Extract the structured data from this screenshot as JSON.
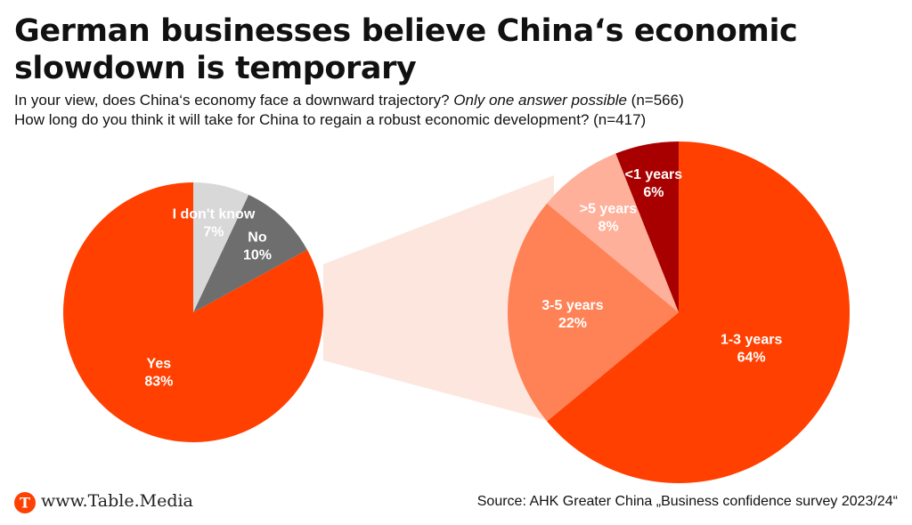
{
  "title": "German businesses believe China‘s economic slowdown is temporary",
  "subtitle_1": {
    "text": "In your view, does China‘s economy face a downward trajectory?",
    "italic": "Only one answer possible",
    "n": "(n=566)"
  },
  "subtitle_2": "How long do you think it will take for China to regain a robust economic development? (n=417)",
  "chart_data": [
    {
      "type": "pie",
      "slices": [
        {
          "label": "Yes",
          "value": 83,
          "display": "83%",
          "color": "#ff4000",
          "text_color": "#ffffff"
        },
        {
          "label": "No",
          "value": 10,
          "display": "10%",
          "color": "#6e6e6e",
          "text_color": "#ffffff"
        },
        {
          "label": "I don't know",
          "value": 7,
          "display": "7%",
          "color": "#d8d8d8",
          "text_color": "#ffffff"
        }
      ]
    },
    {
      "type": "pie",
      "slices": [
        {
          "label": "1-3 years",
          "value": 64,
          "display": "64%",
          "color": "#ff4000",
          "text_color": "#ffffff"
        },
        {
          "label": "3-5 years",
          "value": 22,
          "display": "22%",
          "color": "#ff8257",
          "text_color": "#ffffff"
        },
        {
          "label": ">5 years",
          "value": 8,
          "display": "8%",
          "color": "#ffb09a",
          "text_color": "#ffffff"
        },
        {
          "label": "<1 years",
          "value": 6,
          "display": "6%",
          "color": "#a80000",
          "text_color": "#ffffff"
        }
      ]
    }
  ],
  "colors": {
    "connector": "#fde6dd",
    "accent": "#ff4000"
  },
  "footer": {
    "brand": "www.Table.Media",
    "logo_letter": "T",
    "source": "Source: AHK Greater China „Business confidence survey 2023/24“"
  }
}
